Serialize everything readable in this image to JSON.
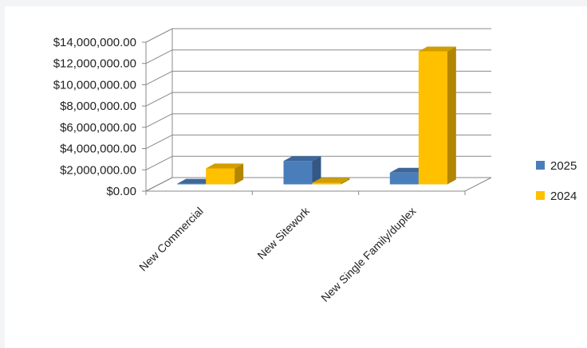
{
  "chart_data": {
    "type": "bar",
    "categories": [
      "New Commercial",
      "New Sitework",
      "New Single Family/duplex"
    ],
    "series": [
      {
        "name": "2025",
        "values": [
          60000,
          2200000,
          1100000
        ],
        "color": "#4a7ebb"
      },
      {
        "name": "2024",
        "values": [
          1500000,
          150000,
          12500000
        ],
        "color": "#ffc000"
      }
    ],
    "y_ticks": [
      "$0.00",
      "$2,000,000.00",
      "$4,000,000.00",
      "$6,000,000.00",
      "$8,000,000.00",
      "$10,000,000.00",
      "$12,000,000.00",
      "$14,000,000.00"
    ],
    "ylim": [
      0,
      14000000
    ],
    "style": "3d-clustered-column",
    "grid": true,
    "legend_position": "right"
  }
}
